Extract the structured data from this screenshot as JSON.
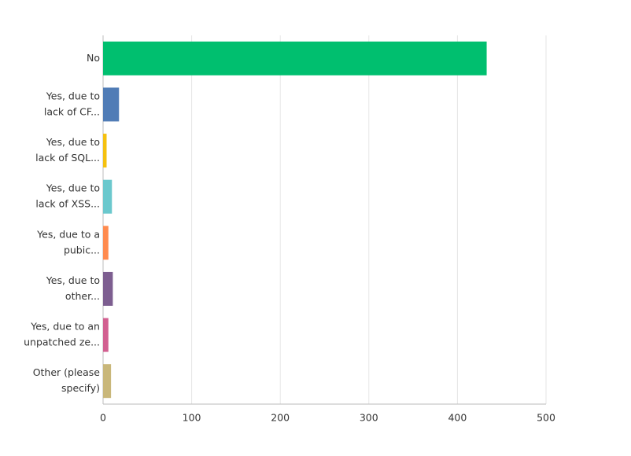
{
  "chart_data": {
    "type": "bar",
    "orientation": "horizontal",
    "categories": [
      [
        "No"
      ],
      [
        "Yes, due to",
        "lack of CF..."
      ],
      [
        "Yes, due to",
        "lack of SQL..."
      ],
      [
        "Yes, due to",
        "lack of XSS..."
      ],
      [
        "Yes, due to a",
        "pubic..."
      ],
      [
        "Yes, due to",
        "other..."
      ],
      [
        "Yes, due to an",
        "unpatched ze..."
      ],
      [
        "Other (please",
        "specify)"
      ]
    ],
    "values": [
      433,
      18,
      4,
      10,
      6,
      11,
      6,
      9
    ],
    "colors": [
      "#00bf6f",
      "#507cb6",
      "#f5c10f",
      "#6bc8cd",
      "#ff8b4f",
      "#7d5e90",
      "#d25f90",
      "#c9b77a"
    ],
    "xlim": [
      0,
      500
    ],
    "xticks": [
      0,
      100,
      200,
      300,
      400,
      500
    ],
    "grid": true
  }
}
